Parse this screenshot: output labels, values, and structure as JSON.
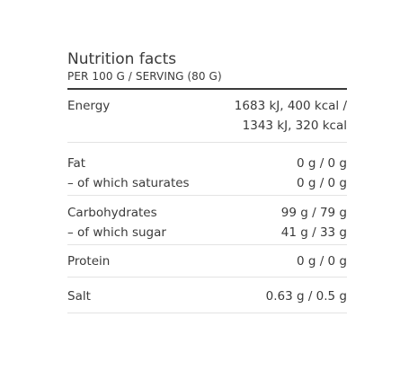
{
  "table": {
    "title": "Nutrition facts",
    "subtitle": "PER 100 G / SERVING (80 G)",
    "energy": {
      "label": "Energy",
      "value_line1": "1683 kJ, 400 kcal /",
      "value_line2": "1343 kJ, 320 kcal"
    },
    "fat": {
      "label": "Fat",
      "value": "0 g / 0 g",
      "sub_label": "– of which saturates",
      "sub_value": "0 g / 0 g"
    },
    "carbohydrates": {
      "label": "Carbohydrates",
      "value": "99 g / 79 g",
      "sub_label": "– of which sugar",
      "sub_value": "41 g / 33 g"
    },
    "protein": {
      "label": "Protein",
      "value": "0 g / 0 g"
    },
    "salt": {
      "label": "Salt",
      "value": "0.63 g / 0.5 g"
    }
  }
}
